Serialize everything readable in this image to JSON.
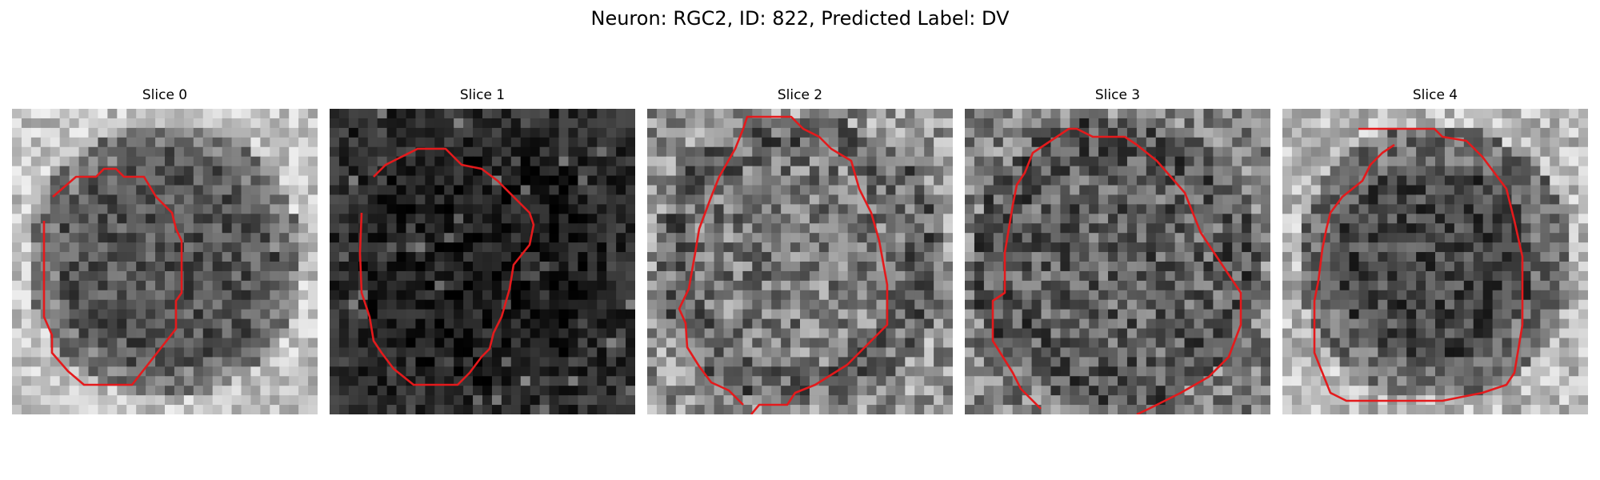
{
  "figure": {
    "title": "Neuron: RGC2, ID: 822, Predicted Label: DV"
  },
  "panels": [
    {
      "title": "Slice 0",
      "variant": "bright-ring",
      "contour_color": "#e41a1c"
    },
    {
      "title": "Slice 1",
      "variant": "dark",
      "contour_color": "#e41a1c"
    },
    {
      "title": "Slice 2",
      "variant": "medium",
      "contour_color": "#e41a1c"
    },
    {
      "title": "Slice 3",
      "variant": "medium-dark",
      "contour_color": "#e41a1c"
    },
    {
      "title": "Slice 4",
      "variant": "vignette",
      "contour_color": "#e41a1c"
    }
  ]
}
